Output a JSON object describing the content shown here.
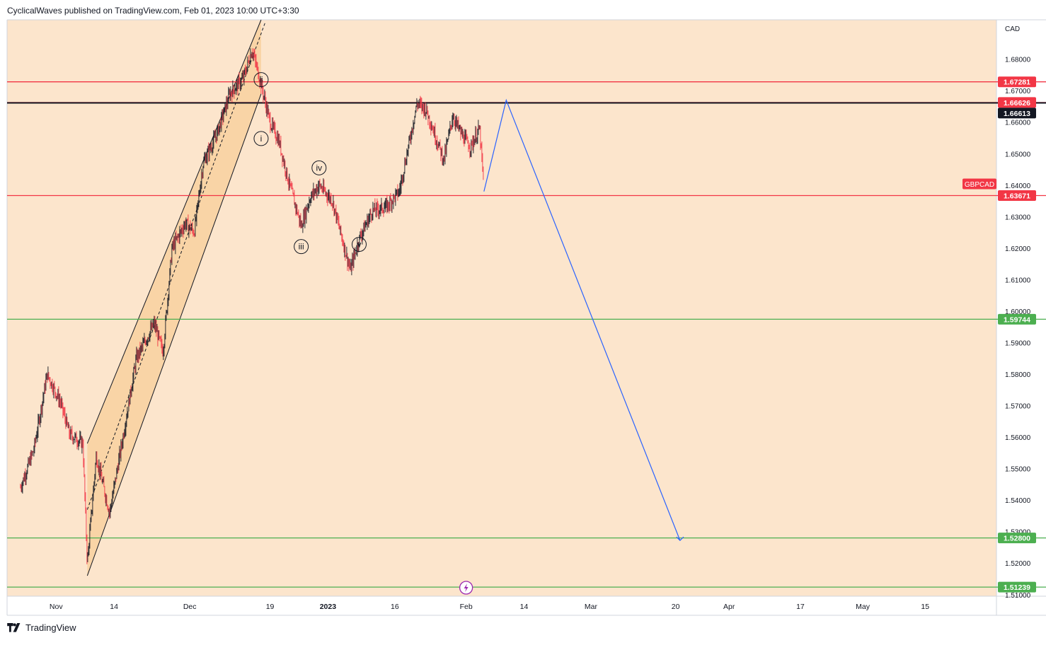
{
  "header": {
    "publish_line": "CyclicalWaves published on TradingView.com, Feb 01, 2023 10:00 UTC+3:30"
  },
  "footer": {
    "brand": "TradingView"
  },
  "colors": {
    "background": "#fce5cc",
    "channel_fill": "#f9d4a6",
    "red_line": "#f23645",
    "green_line": "#4caf50",
    "black_line": "#131722",
    "projection": "#2962ff",
    "candle_up": "#131722",
    "candle_down": "#f23645"
  },
  "chart_data": {
    "type": "line",
    "symbol": "GBPCAD",
    "currency": "CAD",
    "y_range": [
      1.5095,
      1.6925
    ],
    "y_ticks": [
      "1.68000",
      "1.67000",
      "1.66000",
      "1.65000",
      "1.64000",
      "1.63000",
      "1.62000",
      "1.61000",
      "1.60000",
      "1.59000",
      "1.58000",
      "1.57000",
      "1.56000",
      "1.55000",
      "1.54000",
      "1.53000",
      "1.52000",
      "1.51000"
    ],
    "x_tick_labels": [
      "Nov",
      "14",
      "Dec",
      "19",
      "2023",
      "16",
      "Feb",
      "14",
      "Mar",
      "20",
      "Apr",
      "17",
      "May",
      "15"
    ],
    "bold_x_labels": [
      "2023"
    ],
    "horizontal_levels": [
      {
        "value": 1.67281,
        "label": "1.67281",
        "color": "red"
      },
      {
        "value": 1.66626,
        "label": "1.66626",
        "color": "red"
      },
      {
        "value": 1.66613,
        "label": "1.66613",
        "color": "black"
      },
      {
        "value": 1.63671,
        "label": "1.63671",
        "color": "red"
      },
      {
        "value": 1.59744,
        "label": "1.59744",
        "color": "green"
      },
      {
        "value": 1.528,
        "label": "1.52800",
        "color": "green"
      },
      {
        "value": 1.51239,
        "label": "1.51239",
        "color": "green"
      }
    ],
    "symbol_tag": "GBPCAD",
    "wave_labels": [
      {
        "label": "ii",
        "date": "2022-12-17",
        "price": 1.6735
      },
      {
        "label": "i",
        "date": "2022-12-17",
        "price": 1.6548
      },
      {
        "label": "iv",
        "date": "2022-12-30",
        "price": 1.6455
      },
      {
        "label": "iii",
        "date": "2022-12-26",
        "price": 1.6205
      },
      {
        "label": "v",
        "date": "2023-01-08",
        "price": 1.6212
      }
    ],
    "price_path": [
      {
        "date": "2022-10-24",
        "price": 1.544
      },
      {
        "date": "2022-10-27",
        "price": 1.556
      },
      {
        "date": "2022-10-30",
        "price": 1.58
      },
      {
        "date": "2022-11-02",
        "price": 1.571
      },
      {
        "date": "2022-11-04",
        "price": 1.561
      },
      {
        "date": "2022-11-07",
        "price": 1.558
      },
      {
        "date": "2022-11-08",
        "price": 1.52
      },
      {
        "date": "2022-11-10",
        "price": 1.554
      },
      {
        "date": "2022-11-13",
        "price": 1.536
      },
      {
        "date": "2022-11-16",
        "price": 1.56
      },
      {
        "date": "2022-11-19",
        "price": 1.585
      },
      {
        "date": "2022-11-23",
        "price": 1.596
      },
      {
        "date": "2022-11-25",
        "price": 1.587
      },
      {
        "date": "2022-11-27",
        "price": 1.62
      },
      {
        "date": "2022-11-30",
        "price": 1.628
      },
      {
        "date": "2022-12-02",
        "price": 1.625
      },
      {
        "date": "2022-12-04",
        "price": 1.647
      },
      {
        "date": "2022-12-07",
        "price": 1.656
      },
      {
        "date": "2022-12-10",
        "price": 1.669
      },
      {
        "date": "2022-12-13",
        "price": 1.674
      },
      {
        "date": "2022-12-15",
        "price": 1.683
      },
      {
        "date": "2022-12-17",
        "price": 1.672
      },
      {
        "date": "2022-12-19",
        "price": 1.66
      },
      {
        "date": "2022-12-21",
        "price": 1.654
      },
      {
        "date": "2022-12-23",
        "price": 1.642
      },
      {
        "date": "2022-12-26",
        "price": 1.627
      },
      {
        "date": "2022-12-28",
        "price": 1.636
      },
      {
        "date": "2022-12-30",
        "price": 1.64
      },
      {
        "date": "2023-01-02",
        "price": 1.635
      },
      {
        "date": "2023-01-04",
        "price": 1.624
      },
      {
        "date": "2023-01-06",
        "price": 1.613
      },
      {
        "date": "2023-01-08",
        "price": 1.623
      },
      {
        "date": "2023-01-11",
        "price": 1.632
      },
      {
        "date": "2023-01-14",
        "price": 1.633
      },
      {
        "date": "2023-01-17",
        "price": 1.638
      },
      {
        "date": "2023-01-19",
        "price": 1.652
      },
      {
        "date": "2023-01-21",
        "price": 1.666
      },
      {
        "date": "2023-01-23",
        "price": 1.664
      },
      {
        "date": "2023-01-25",
        "price": 1.656
      },
      {
        "date": "2023-01-27",
        "price": 1.648
      },
      {
        "date": "2023-01-29",
        "price": 1.662
      },
      {
        "date": "2023-01-31",
        "price": 1.656
      },
      {
        "date": "2023-02-02",
        "price": 1.652
      },
      {
        "date": "2023-02-04",
        "price": 1.658
      },
      {
        "date": "2023-02-05",
        "price": 1.639
      }
    ],
    "channel": {
      "upper_start": {
        "date": "2022-11-08",
        "price": 1.558
      },
      "upper_end": {
        "date": "2022-12-17",
        "price": 1.6925
      },
      "lower_start": {
        "date": "2022-11-08",
        "price": 1.516
      },
      "lower_end": {
        "date": "2022-12-17",
        "price": 1.669
      },
      "mid_start": {
        "date": "2022-11-08",
        "price": 1.537
      },
      "mid_end": {
        "date": "2022-12-18",
        "price": 1.692
      }
    },
    "projection": [
      {
        "date": "2023-02-05",
        "price": 1.638
      },
      {
        "date": "2023-02-10",
        "price": 1.667
      },
      {
        "date": "2023-03-21",
        "price": 1.5272
      }
    ]
  }
}
